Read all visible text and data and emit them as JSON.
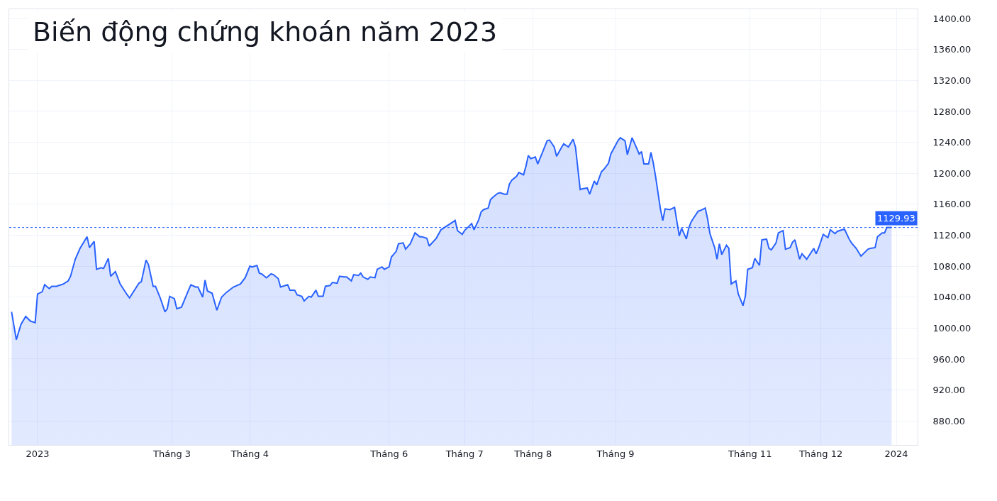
{
  "chart_data": {
    "type": "area",
    "title": "Biến động chứng khoán năm 2023",
    "x": [
      "2022-12-23",
      "2022-12-25",
      "2022-12-27",
      "2022-12-29",
      "2022-12-31",
      "2023-01-02",
      "2023-01-03",
      "2023-01-05",
      "2023-01-06",
      "2023-01-08",
      "2023-01-09",
      "2023-01-11",
      "2023-01-13",
      "2023-01-14",
      "2023-01-16",
      "2023-01-17",
      "2023-01-19",
      "2023-01-21",
      "2023-01-24",
      "2023-01-25",
      "2023-01-27",
      "2023-01-28",
      "2023-01-30",
      "2023-01-31",
      "2023-02-02",
      "2023-02-03",
      "2023-02-05",
      "2023-02-07",
      "2023-02-10",
      "2023-02-11",
      "2023-02-15",
      "2023-02-16",
      "2023-02-18",
      "2023-02-19",
      "2023-02-21",
      "2023-02-22",
      "2023-02-24",
      "2023-02-26",
      "2023-02-27",
      "2023-02-28",
      "2023-03-02",
      "2023-03-03",
      "2023-03-05",
      "2023-03-08",
      "2023-03-09",
      "2023-03-11",
      "2023-03-12",
      "2023-03-14",
      "2023-03-15",
      "2023-03-16",
      "2023-03-18",
      "2023-03-20",
      "2023-03-22",
      "2023-03-24",
      "2023-03-27",
      "2023-03-30",
      "2023-04-01",
      "2023-04-03",
      "2023-04-04",
      "2023-04-06",
      "2023-04-07",
      "2023-04-08",
      "2023-04-10",
      "2023-04-12",
      "2023-04-13",
      "2023-04-15",
      "2023-04-16",
      "2023-04-19",
      "2023-04-20",
      "2023-04-22",
      "2023-04-23",
      "2023-04-25",
      "2023-04-26",
      "2023-04-28",
      "2023-04-29",
      "2023-05-01",
      "2023-05-02",
      "2023-05-04",
      "2023-05-05",
      "2023-05-07",
      "2023-05-08",
      "2023-05-10",
      "2023-05-11",
      "2023-05-13",
      "2023-05-14",
      "2023-05-16",
      "2023-05-17",
      "2023-05-19",
      "2023-05-20",
      "2023-05-21",
      "2023-05-23",
      "2023-05-24",
      "2023-05-26",
      "2023-05-27",
      "2023-05-29",
      "2023-05-30",
      "2023-06-01",
      "2023-06-02",
      "2023-06-04",
      "2023-06-05",
      "2023-06-07",
      "2023-06-08",
      "2023-06-10",
      "2023-06-12",
      "2023-06-14",
      "2023-06-15",
      "2023-06-17",
      "2023-06-18",
      "2023-06-21",
      "2023-06-23",
      "2023-06-25",
      "2023-06-27",
      "2023-06-29",
      "2023-06-30",
      "2023-07-02",
      "2023-07-03",
      "2023-07-05",
      "2023-07-06",
      "2023-07-07",
      "2023-07-09",
      "2023-07-10",
      "2023-07-11",
      "2023-07-13",
      "2023-07-14",
      "2023-07-15",
      "2023-07-17",
      "2023-07-18",
      "2023-07-20",
      "2023-07-21",
      "2023-07-22",
      "2023-07-23",
      "2023-07-25",
      "2023-07-26",
      "2023-07-28",
      "2023-07-29",
      "2023-07-30",
      "2023-07-31",
      "2023-08-02",
      "2023-08-03",
      "2023-08-05",
      "2023-08-07",
      "2023-08-08",
      "2023-08-10",
      "2023-08-11",
      "2023-08-13",
      "2023-08-14",
      "2023-08-16",
      "2023-08-18",
      "2023-08-19",
      "2023-08-21",
      "2023-08-22",
      "2023-08-24",
      "2023-08-25",
      "2023-08-27",
      "2023-08-28",
      "2023-08-30",
      "2023-08-31",
      "2023-09-02",
      "2023-09-03",
      "2023-09-06",
      "2023-09-07",
      "2023-09-09",
      "2023-09-10",
      "2023-09-12",
      "2023-09-13",
      "2023-09-15",
      "2023-09-16",
      "2023-09-17",
      "2023-09-19",
      "2023-09-20",
      "2023-09-21",
      "2023-09-22",
      "2023-09-24",
      "2023-09-25",
      "2023-09-26",
      "2023-09-28",
      "2023-09-30",
      "2023-10-02",
      "2023-10-03",
      "2023-10-05",
      "2023-10-06",
      "2023-10-07",
      "2023-10-08",
      "2023-10-10",
      "2023-10-11",
      "2023-10-13",
      "2023-10-14",
      "2023-10-15",
      "2023-10-17",
      "2023-10-18",
      "2023-10-19",
      "2023-10-20",
      "2023-10-22",
      "2023-10-23",
      "2023-10-24",
      "2023-10-26",
      "2023-10-27",
      "2023-10-29",
      "2023-10-30",
      "2023-10-31",
      "2023-11-02",
      "2023-11-03",
      "2023-11-05",
      "2023-11-06",
      "2023-11-08",
      "2023-11-09",
      "2023-11-10",
      "2023-11-12",
      "2023-11-13",
      "2023-11-15",
      "2023-11-16",
      "2023-11-18",
      "2023-11-19",
      "2023-11-20",
      "2023-11-22",
      "2023-11-23",
      "2023-11-25",
      "2023-11-28",
      "2023-11-29",
      "2023-11-30",
      "2023-12-02",
      "2023-12-04",
      "2023-12-05",
      "2023-12-07",
      "2023-12-08",
      "2023-12-11",
      "2023-12-13",
      "2023-12-14",
      "2023-12-16",
      "2023-12-18",
      "2023-12-21",
      "2023-12-22",
      "2023-12-24",
      "2023-12-25",
      "2023-12-27",
      "2023-12-28",
      "2023-12-29",
      "2023-12-31"
    ],
    "series": [
      {
        "color": "#2962ff",
        "values": [
          1021,
          985,
          1005,
          1015,
          1009,
          1007,
          1044,
          1047,
          1056,
          1051,
          1054,
          1054,
          1056,
          1057,
          1061,
          1067,
          1089,
          1103,
          1118,
          1104,
          1112,
          1076,
          1078,
          1077,
          1090,
          1067,
          1073,
          1057,
          1043,
          1039,
          1058,
          1060,
          1088,
          1082,
          1054,
          1054,
          1039,
          1021,
          1025,
          1041,
          1038,
          1025,
          1027,
          1049,
          1056,
          1053,
          1053,
          1040,
          1062,
          1048,
          1045,
          1023,
          1040,
          1046,
          1053,
          1057,
          1065,
          1080,
          1079,
          1081,
          1071,
          1070,
          1065,
          1070,
          1069,
          1064,
          1053,
          1056,
          1049,
          1049,
          1043,
          1041,
          1035,
          1041,
          1040,
          1049,
          1041,
          1041,
          1054,
          1055,
          1059,
          1058,
          1067,
          1066,
          1066,
          1061,
          1069,
          1068,
          1071,
          1066,
          1063,
          1066,
          1065,
          1076,
          1079,
          1076,
          1079,
          1092,
          1099,
          1109,
          1110,
          1102,
          1109,
          1123,
          1118,
          1118,
          1116,
          1106,
          1116,
          1127,
          1131,
          1135,
          1139,
          1126,
          1121,
          1126,
          1132,
          1135,
          1127,
          1140,
          1150,
          1153,
          1155,
          1166,
          1169,
          1174,
          1175,
          1173,
          1173,
          1186,
          1191,
          1196,
          1201,
          1198,
          1209,
          1223,
          1219,
          1221,
          1212,
          1227,
          1242,
          1243,
          1234,
          1222,
          1233,
          1238,
          1234,
          1244,
          1234,
          1179,
          1180,
          1181,
          1173,
          1190,
          1185,
          1202,
          1205,
          1213,
          1225,
          1242,
          1246,
          1242,
          1224,
          1246,
          1239,
          1225,
          1228,
          1212,
          1212,
          1227,
          1213,
          1195,
          1154,
          1139,
          1154,
          1153,
          1156,
          1119,
          1129,
          1115,
          1129,
          1137,
          1142,
          1151,
          1152,
          1155,
          1141,
          1122,
          1104,
          1089,
          1109,
          1095,
          1107,
          1103,
          1057,
          1061,
          1044,
          1029,
          1041,
          1076,
          1078,
          1090,
          1081,
          1114,
          1115,
          1103,
          1101,
          1110,
          1123,
          1126,
          1102,
          1104,
          1111,
          1114,
          1089,
          1096,
          1089,
          1103,
          1096,
          1103,
          1121,
          1117,
          1127,
          1122,
          1125,
          1128,
          1115,
          1110,
          1103,
          1093,
          1102,
          1103,
          1104,
          1118,
          1123,
          1123,
          1130,
          1129.93
        ]
      }
    ],
    "xlim": [
      "2022-12-22",
      "2024-01-11"
    ],
    "xticks": [
      {
        "value": "2023-01-03",
        "label": "2023"
      },
      {
        "value": "2023-03-01",
        "label": "Tháng 3"
      },
      {
        "value": "2023-04-03",
        "label": "Tháng 4"
      },
      {
        "value": "2023-06-01",
        "label": "Tháng 6"
      },
      {
        "value": "2023-07-03",
        "label": "Tháng 7"
      },
      {
        "value": "2023-08-01",
        "label": "Tháng 8"
      },
      {
        "value": "2023-09-05",
        "label": "Tháng 9"
      },
      {
        "value": "2023-11-01",
        "label": "Tháng 11"
      },
      {
        "value": "2023-12-01",
        "label": "Tháng 12"
      },
      {
        "value": "2024-01-02",
        "label": "2024"
      }
    ],
    "ylim": [
      849,
      1412
    ],
    "yticks": [
      {
        "value": 880,
        "label": "880.00"
      },
      {
        "value": 920,
        "label": "920.00"
      },
      {
        "value": 960,
        "label": "960.00"
      },
      {
        "value": 1000,
        "label": "1000.00"
      },
      {
        "value": 1040,
        "label": "1040.00"
      },
      {
        "value": 1080,
        "label": "1080.00"
      },
      {
        "value": 1120,
        "label": "1120.00"
      },
      {
        "value": 1160,
        "label": "1160.00"
      },
      {
        "value": 1200,
        "label": "1200.00"
      },
      {
        "value": 1240,
        "label": "1240.00"
      },
      {
        "value": 1280,
        "label": "1280.00"
      },
      {
        "value": 1320,
        "label": "1320.00"
      },
      {
        "value": 1360,
        "label": "1360.00"
      },
      {
        "value": 1400,
        "label": "1400.00"
      }
    ],
    "ref_lines": [
      {
        "axis": "y",
        "value": 1129.93,
        "label": "1129.93",
        "color": "#2962ff",
        "line_style": "dotted"
      }
    ],
    "grid": true,
    "marker": "none",
    "line_style": "solid"
  }
}
